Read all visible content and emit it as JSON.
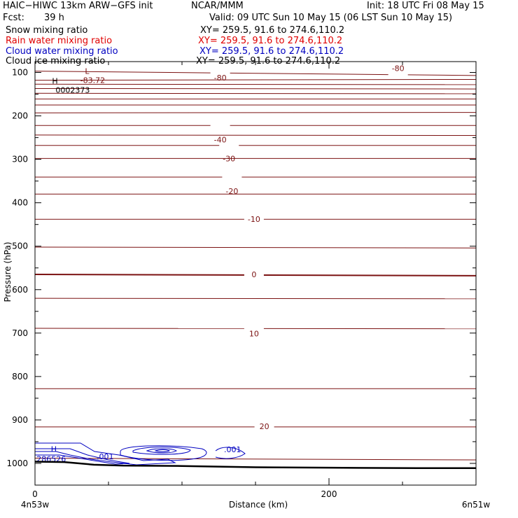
{
  "header": {
    "title_left": "HAIC−HIWC 13km ARW−GFS init",
    "title_center": "NCAR/MMM",
    "init": "Init: 18 UTC Fri 08 May 15",
    "fcst_label": "Fcst:",
    "fcst_value": "39 h",
    "valid": "Valid: 09 UTC Sun 10 May 15 (06 LST Sun 10 May 15)"
  },
  "fields": [
    {
      "name": "Snow mixing ratio",
      "xy": "XY= 259.5, 91.6 to 274.6,110.2",
      "color": "#000000"
    },
    {
      "name": "Rain water mixing ratio",
      "xy": "XY= 259.5, 91.6 to 274.6,110.2",
      "color": "#e00000"
    },
    {
      "name": "Cloud water mixing ratio",
      "xy": "XY= 259.5, 91.6 to 274.6,110.2",
      "color": "#0000c0"
    },
    {
      "name": "Cloud ice mixing ratio",
      "xy": "XY= 259.5, 91.6 to 274.6,110.2",
      "color": "#000000"
    }
  ],
  "chart_data": {
    "type": "line",
    "xlabel": "Distance (km)",
    "ylabel": "Pressure (hPa)",
    "xlim": [
      0,
      300
    ],
    "ylim": [
      1050,
      75
    ],
    "x_ticks": [
      0,
      200
    ],
    "y_ticks": [
      100,
      200,
      300,
      400,
      500,
      600,
      700,
      800,
      900,
      1000
    ],
    "x_endpoint_labels": [
      "4n53w",
      "6n51w"
    ],
    "colors": {
      "temperature": "#7b1212",
      "cloud_water": "#0000c0",
      "terrain": "#000000"
    },
    "temperature_contours": {
      "interval": 5,
      "levels": [
        -80,
        -75,
        -70,
        -65,
        -60,
        -55,
        -50,
        -45,
        -40,
        -35,
        -30,
        -25,
        -20,
        -15,
        -10,
        -5,
        0,
        5,
        10,
        15,
        20,
        25
      ],
      "labeled": [
        {
          "text": "-80",
          "x": 247,
          "p": 90
        },
        {
          "text": "-80",
          "x": 126,
          "p": 112
        },
        {
          "text": "-40",
          "x": 126,
          "p": 255
        },
        {
          "text": "-30",
          "x": 132,
          "p": 298
        },
        {
          "text": "-20",
          "x": 134,
          "p": 373
        },
        {
          "text": "-10",
          "x": 149,
          "p": 438
        },
        {
          "text": "0",
          "x": 149,
          "p": 565
        },
        {
          "text": "10",
          "x": 149,
          "p": 701
        },
        {
          "text": "20",
          "x": 156,
          "p": 915
        }
      ],
      "low": {
        "label": "L",
        "value": "-83.72",
        "x": 34,
        "p": 105
      },
      "high": {
        "label": "H",
        "value": "0002373",
        "x": 24,
        "p": 124
      }
    },
    "cloud_water": {
      "contour_label": ".001",
      "high": {
        "label": "H",
        "value": ".286526",
        "x": 8,
        "p": 980
      }
    },
    "terrain_pressure": [
      {
        "x": 0,
        "p": 996
      },
      {
        "x": 20,
        "p": 997
      },
      {
        "x": 40,
        "p": 1003
      },
      {
        "x": 60,
        "p": 1005
      },
      {
        "x": 100,
        "p": 1006
      },
      {
        "x": 150,
        "p": 1009
      },
      {
        "x": 200,
        "p": 1010
      },
      {
        "x": 260,
        "p": 1011
      },
      {
        "x": 300,
        "p": 1011
      }
    ]
  }
}
